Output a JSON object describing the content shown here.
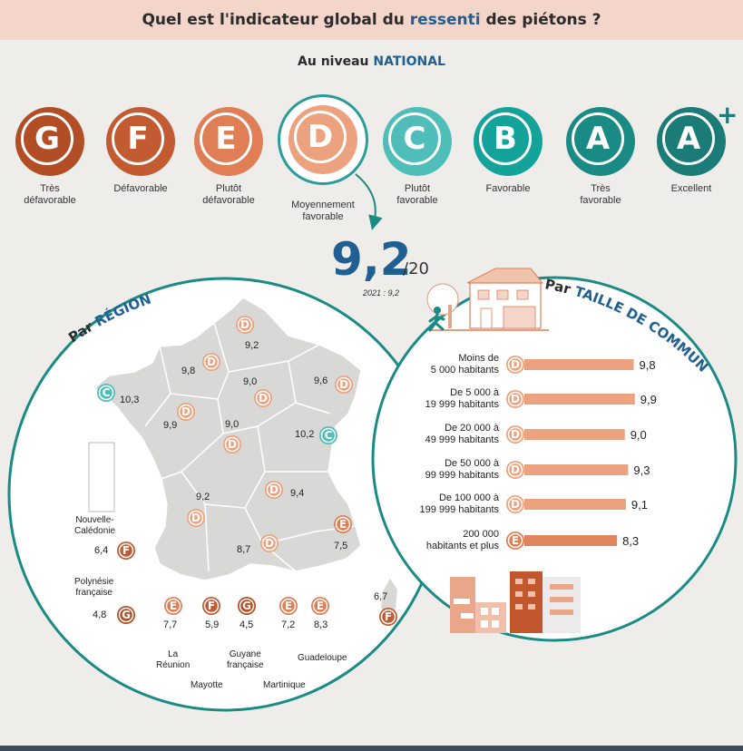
{
  "header": {
    "title_part1": "Quel est l'indicateur global du ",
    "title_highlight": "ressenti",
    "title_part2": " des piétons ?"
  },
  "national": {
    "label_part1": "Au niveau ",
    "label_highlight": "NATIONAL"
  },
  "colors": {
    "G": "#b24e26",
    "F": "#c25a32",
    "E": "#e07e56",
    "D": "#eca27f",
    "C": "#4fbdb8",
    "B": "#14a39b",
    "A": "#1a8a84",
    "Aplus": "#1b7b77"
  },
  "grades": [
    {
      "letter": "G",
      "label_line1": "Très",
      "label_line2": "défavorable"
    },
    {
      "letter": "F",
      "label_line1": "Défavorable",
      "label_line2": ""
    },
    {
      "letter": "E",
      "label_line1": "Plutôt",
      "label_line2": "défavorable"
    },
    {
      "letter": "D",
      "label_line1": "Moyennement",
      "label_line2": "favorable"
    },
    {
      "letter": "C",
      "label_line1": "Plutôt",
      "label_line2": "favorable"
    },
    {
      "letter": "B",
      "label_line1": "Favorable",
      "label_line2": ""
    },
    {
      "letter": "A",
      "label_line1": "Très",
      "label_line2": "favorable"
    },
    {
      "letter": "A",
      "label_line1": "Excellent",
      "label_line2": ""
    }
  ],
  "plus_sign": "+",
  "score": {
    "value": "9,2",
    "denominator": "/20",
    "note": "2021 : 9,2"
  },
  "region": {
    "title_part1": "Par ",
    "title_highlight": "RÉGION"
  },
  "commune": {
    "title_part1": "Par ",
    "title_highlight": "TAILLE DE COMMUNE"
  },
  "chart_data": [
    {
      "type": "bar",
      "title": "Par TAILLE DE COMMUNE",
      "categories": [
        "Moins de 5 000 habitants",
        "De 5 000 à 19 999 habitants",
        "De 20 000 à 49 999 habitants",
        "De 50 000 à 99 999 habitants",
        "De 100 000 à 199 999 habitants",
        "200 000 habitants et plus"
      ],
      "category_lines": [
        [
          "Moins de",
          "5 000 habitants"
        ],
        [
          "De 5 000 à",
          "19 999 habitants"
        ],
        [
          "De 20 000 à",
          "49 999 habitants"
        ],
        [
          "De 50 000 à",
          "99 999 habitants"
        ],
        [
          "De 100 000 à",
          "199 999 habitants"
        ],
        [
          "200 000",
          "habitants et plus"
        ]
      ],
      "values": [
        9.8,
        9.9,
        9.0,
        9.3,
        9.1,
        8.3
      ],
      "value_labels": [
        "9,8",
        "9,9",
        "9,0",
        "9,3",
        "9,1",
        "8,3"
      ],
      "grades": [
        "D",
        "D",
        "D",
        "D",
        "D",
        "E"
      ]
    },
    {
      "type": "table",
      "title": "Par RÉGION",
      "regions": [
        {
          "value": "9,2",
          "grade": "D"
        },
        {
          "value": "9,8",
          "grade": "D"
        },
        {
          "value": "9,0",
          "grade": "D"
        },
        {
          "value": "9,6",
          "grade": "D"
        },
        {
          "value": "10,3",
          "grade": "C"
        },
        {
          "value": "9,9",
          "grade": "D"
        },
        {
          "value": "9,0",
          "grade": "D"
        },
        {
          "value": "10,2",
          "grade": "C"
        },
        {
          "value": "9,4",
          "grade": "D"
        },
        {
          "value": "9,2",
          "grade": "D"
        },
        {
          "value": "8,7",
          "grade": "D"
        },
        {
          "value": "7,5",
          "grade": "E"
        },
        {
          "value": "6,7",
          "grade": "F"
        }
      ],
      "territories": [
        {
          "name_line1": "Nouvelle-",
          "name_line2": "Calédonie",
          "value": "6,4",
          "grade": "F"
        },
        {
          "name_line1": "Polynésie",
          "name_line2": "française",
          "value": "4,8",
          "grade": "G"
        },
        {
          "name_line1": "La",
          "name_line2": "Réunion",
          "value": "7,7",
          "grade": "E"
        },
        {
          "name_line1": "Mayotte",
          "name_line2": "",
          "value": "5,9",
          "grade": "F"
        },
        {
          "name_line1": "Guyane",
          "name_line2": "française",
          "value": "4,5",
          "grade": "G"
        },
        {
          "name_line1": "Martinique",
          "name_line2": "",
          "value": "7,2",
          "grade": "E"
        },
        {
          "name_line1": "Guadeloupe",
          "name_line2": "",
          "value": "8,3",
          "grade": "E"
        }
      ]
    }
  ]
}
